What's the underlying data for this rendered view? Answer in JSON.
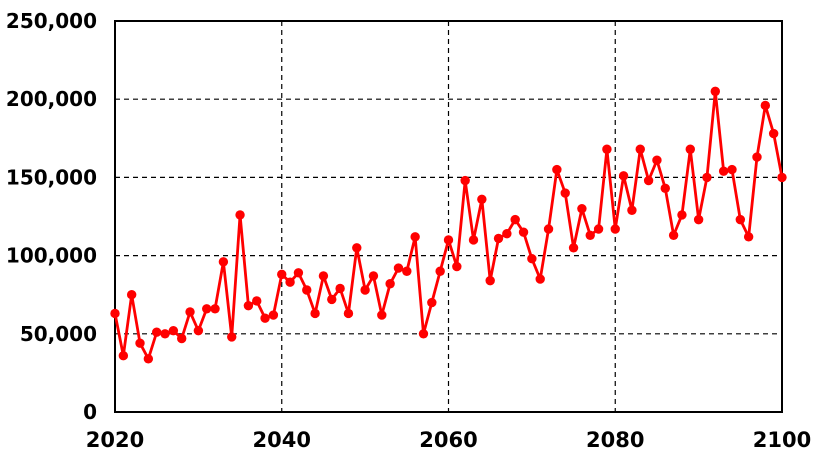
{
  "chart_data": {
    "type": "line",
    "title": "",
    "xlabel": "",
    "ylabel": "",
    "legend": "none",
    "grid_on": true,
    "grid_style": "dashed",
    "xlim": [
      2020,
      2100
    ],
    "ylim": [
      0,
      250000
    ],
    "x_ticks": {
      "values": [
        2020,
        2040,
        2060,
        2080,
        2100
      ],
      "labels": [
        "2020",
        "2040",
        "2060",
        "2080",
        "2100"
      ]
    },
    "y_ticks": {
      "values": [
        0,
        50000,
        100000,
        150000,
        200000,
        250000
      ],
      "labels": [
        "0",
        "50,000",
        "100,000",
        "150,000",
        "200,000",
        "250,000"
      ]
    },
    "grid_lines": {
      "horizontal_values": [
        50000,
        100000,
        150000,
        200000
      ],
      "vertical_values": [
        2040,
        2060,
        2080
      ]
    },
    "colors": {
      "line": "#ff0000",
      "marker": "#ff0000",
      "grid": "#000000",
      "border": "#000000",
      "background": "#ffffff",
      "tick_label": "#000000"
    },
    "series": [
      {
        "name": "values-by-year",
        "x": [
          2020,
          2021,
          2022,
          2023,
          2024,
          2025,
          2026,
          2027,
          2028,
          2029,
          2030,
          2031,
          2032,
          2033,
          2034,
          2035,
          2036,
          2037,
          2038,
          2039,
          2040,
          2041,
          2042,
          2043,
          2044,
          2045,
          2046,
          2047,
          2048,
          2049,
          2050,
          2051,
          2052,
          2053,
          2054,
          2055,
          2056,
          2057,
          2058,
          2059,
          2060,
          2061,
          2062,
          2063,
          2064,
          2065,
          2066,
          2067,
          2068,
          2069,
          2070,
          2071,
          2072,
          2073,
          2074,
          2075,
          2076,
          2077,
          2078,
          2079,
          2080,
          2081,
          2082,
          2083,
          2084,
          2085,
          2086,
          2087,
          2088,
          2089,
          2090,
          2091,
          2092,
          2093,
          2094,
          2095,
          2096,
          2097,
          2098,
          2099,
          2100
        ],
        "values": [
          63000,
          36000,
          75000,
          44000,
          34000,
          51000,
          50000,
          52000,
          47000,
          64000,
          52000,
          66000,
          66000,
          96000,
          48000,
          126000,
          68000,
          71000,
          60000,
          62000,
          88000,
          83000,
          89000,
          78000,
          63000,
          87000,
          72000,
          79000,
          63000,
          105000,
          78000,
          87000,
          62000,
          82000,
          92000,
          90000,
          112000,
          50000,
          70000,
          90000,
          110000,
          93000,
          148000,
          110000,
          136000,
          84000,
          111000,
          114000,
          123000,
          115000,
          98000,
          85000,
          117000,
          155000,
          140000,
          105000,
          130000,
          113000,
          117000,
          168000,
          117000,
          151000,
          129000,
          168000,
          148000,
          161000,
          143000,
          113000,
          126000,
          168000,
          123000,
          150000,
          205000,
          154000,
          155000,
          123000,
          112000,
          163000,
          196000,
          178000,
          150000
        ]
      }
    ]
  }
}
